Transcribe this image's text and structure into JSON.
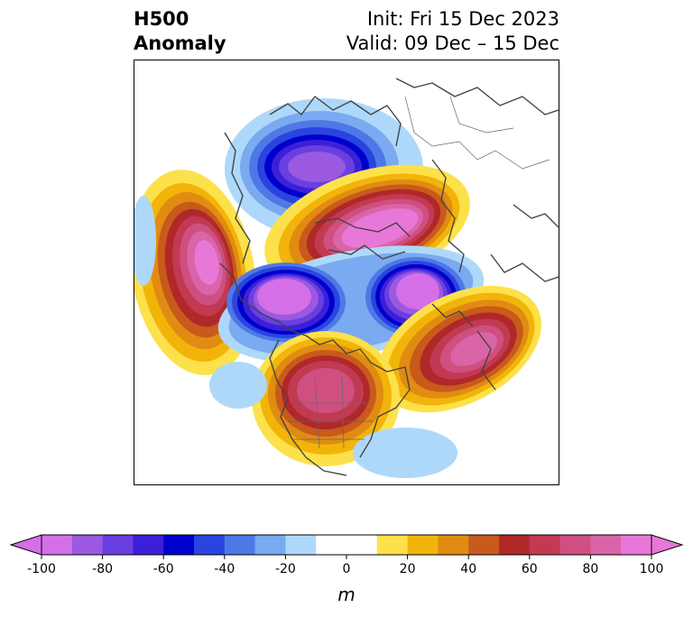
{
  "header": {
    "left_line1": "H500",
    "left_line2": "Anomaly",
    "right_line1": "Init: Fri 15 Dec 2023",
    "right_line2": "Valid: 09 Dec – 15 Dec"
  },
  "colorbar": {
    "unit": "m",
    "min": -100,
    "max": 100,
    "step": 10,
    "tick_values": [
      -100,
      -80,
      -60,
      -40,
      -20,
      0,
      20,
      40,
      60,
      80,
      100
    ],
    "tick_labels": [
      "-100",
      "-80",
      "-60",
      "-40",
      "-20",
      "0",
      "20",
      "40",
      "60",
      "80",
      "100"
    ],
    "colors": [
      "#d46fe8",
      "#9b59e0",
      "#6a3fe0",
      "#3c20d8",
      "#0000cc",
      "#2a44e0",
      "#4f78e6",
      "#7aaaf0",
      "#aed8fa",
      "#ffffff",
      "#ffffff",
      "#fde14a",
      "#f2b40a",
      "#e08c12",
      "#c85a1c",
      "#b0282a",
      "#c23a52",
      "#cf4f80",
      "#d965a8",
      "#e878d8"
    ],
    "extend": "both"
  },
  "map": {
    "projection": "north-polar stereographic",
    "field": "500 hPa height anomaly"
  }
}
